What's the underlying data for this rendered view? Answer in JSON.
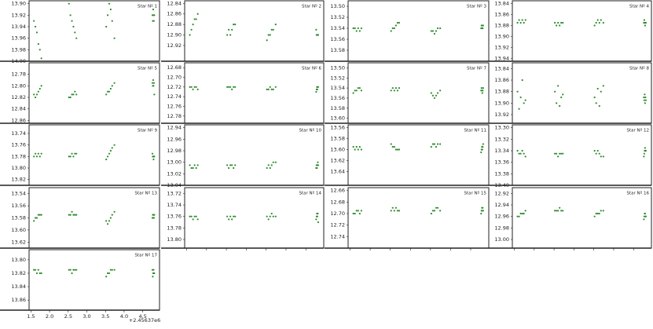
{
  "x_axis": {
    "xlim": [
      1.45,
      4.95
    ],
    "xticks": [
      1.5,
      {
        "value": 2,
        "label": "2.0"
      },
      2.5,
      {
        "value": 3,
        "label": "3.0"
      },
      3.5,
      {
        "value": 4,
        "label": "4.0"
      },
      4.5
    ],
    "offset_label": "+2.45637e6"
  },
  "chart_data": [
    {
      "type": "scatter",
      "title": "Star Nº 1",
      "color": "#2e8b2e",
      "ylim": [
        13.895,
        14.0
      ],
      "yticks": [
        {
          "value": 13.9,
          "label": "13.90"
        },
        13.92,
        13.94,
        13.96,
        13.98,
        {
          "value": 14.0,
          "label": "14.00"
        }
      ],
      "x": [
        1.58,
        1.62,
        1.66,
        1.7,
        1.74,
        1.78,
        2.52,
        2.56,
        2.6,
        2.64,
        2.68,
        2.72,
        3.52,
        3.56,
        3.6,
        3.64,
        3.68,
        3.74,
        4.76,
        4.77,
        4.78,
        4.79,
        4.8,
        4.81
      ],
      "y": [
        13.93,
        13.94,
        13.95,
        13.97,
        13.98,
        13.995,
        13.9,
        13.92,
        13.93,
        13.94,
        13.95,
        13.96,
        13.94,
        13.92,
        13.9,
        13.91,
        13.93,
        13.96,
        13.92,
        13.93,
        13.91,
        13.92,
        13.93,
        13.92
      ]
    },
    {
      "type": "scatter",
      "title": "Star Nº 2",
      "color": "#2e8b2e",
      "ylim": [
        12.835,
        12.95
      ],
      "yticks": [
        12.84,
        12.86,
        12.88,
        {
          "value": 12.9,
          "label": "12.90"
        },
        12.92
      ],
      "x": [
        1.58,
        1.62,
        1.66,
        1.7,
        1.74,
        1.78,
        2.52,
        2.56,
        2.6,
        2.64,
        2.68,
        2.72,
        3.52,
        3.56,
        3.6,
        3.64,
        3.68,
        3.74,
        4.76,
        4.77,
        4.78,
        4.79,
        4.8,
        4.81
      ],
      "y": [
        12.9,
        12.89,
        12.88,
        12.87,
        12.87,
        12.86,
        12.9,
        12.89,
        12.9,
        12.89,
        12.88,
        12.88,
        12.91,
        12.9,
        12.9,
        12.89,
        12.89,
        12.88,
        12.89,
        12.9,
        12.9,
        12.9,
        12.9,
        12.9
      ]
    },
    {
      "type": "scatter",
      "title": "Star Nº 3",
      "color": "#2e8b2e",
      "ylim": [
        13.49,
        13.6
      ],
      "yticks": [
        {
          "value": 13.5,
          "label": "13.50"
        },
        13.52,
        13.54,
        13.56,
        13.58
      ],
      "x": [
        1.58,
        1.62,
        1.66,
        1.7,
        1.74,
        1.78,
        2.52,
        2.56,
        2.6,
        2.64,
        2.68,
        2.72,
        3.52,
        3.56,
        3.6,
        3.64,
        3.68,
        3.74,
        4.76,
        4.77,
        4.78,
        4.79,
        4.8,
        4.81
      ],
      "y": [
        13.54,
        13.54,
        13.545,
        13.54,
        13.545,
        13.54,
        13.545,
        13.54,
        13.54,
        13.535,
        13.53,
        13.53,
        13.545,
        13.545,
        13.55,
        13.545,
        13.54,
        13.54,
        13.54,
        13.535,
        13.54,
        13.535,
        13.54,
        13.535
      ]
    },
    {
      "type": "scatter",
      "title": "Star Nº 4",
      "color": "#2e8b2e",
      "ylim": [
        13.835,
        13.945
      ],
      "yticks": [
        13.84,
        13.86,
        13.88,
        {
          "value": 13.9,
          "label": "13.90"
        },
        13.92,
        13.94
      ],
      "x": [
        1.58,
        1.62,
        1.66,
        1.7,
        1.74,
        1.78,
        2.52,
        2.56,
        2.6,
        2.64,
        2.68,
        2.72,
        3.52,
        3.56,
        3.6,
        3.64,
        3.68,
        3.74,
        4.76,
        4.77,
        4.78,
        4.79,
        4.8,
        4.81
      ],
      "y": [
        13.875,
        13.87,
        13.875,
        13.87,
        13.875,
        13.87,
        13.875,
        13.88,
        13.875,
        13.88,
        13.875,
        13.875,
        13.88,
        13.875,
        13.87,
        13.875,
        13.87,
        13.875,
        13.875,
        13.87,
        13.875,
        13.88,
        13.875,
        13.875
      ]
    },
    {
      "type": "scatter",
      "title": "Star Nº 5",
      "color": "#2e8b2e",
      "ylim": [
        12.76,
        12.865
      ],
      "yticks": [
        12.78,
        {
          "value": 12.8,
          "label": "12.80"
        },
        12.82,
        12.84,
        12.86
      ],
      "x": [
        1.58,
        1.62,
        1.66,
        1.7,
        1.74,
        1.78,
        2.52,
        2.56,
        2.6,
        2.64,
        2.68,
        2.72,
        3.52,
        3.56,
        3.6,
        3.64,
        3.68,
        3.74,
        4.76,
        4.77,
        4.78,
        4.79,
        4.8,
        4.81
      ],
      "y": [
        12.815,
        12.82,
        12.815,
        12.81,
        12.805,
        12.8,
        12.82,
        12.82,
        12.815,
        12.815,
        12.81,
        12.815,
        12.815,
        12.81,
        12.81,
        12.805,
        12.8,
        12.795,
        12.795,
        12.8,
        12.79,
        12.8,
        12.795,
        12.815
      ]
    },
    {
      "type": "scatter",
      "title": "Star Nº 6",
      "color": "#2e8b2e",
      "ylim": [
        12.67,
        12.795
      ],
      "yticks": [
        12.68,
        {
          "value": 12.7,
          "label": "12.70"
        },
        12.72,
        12.74,
        12.76,
        12.78
      ],
      "x": [
        1.58,
        1.62,
        1.66,
        1.7,
        1.74,
        1.78,
        2.52,
        2.56,
        2.6,
        2.64,
        2.68,
        2.72,
        3.52,
        3.56,
        3.6,
        3.64,
        3.68,
        3.74,
        4.76,
        4.77,
        4.78,
        4.79,
        4.8,
        4.81
      ],
      "y": [
        12.72,
        12.72,
        12.725,
        12.72,
        12.72,
        12.725,
        12.72,
        12.72,
        12.72,
        12.725,
        12.72,
        12.72,
        12.725,
        12.725,
        12.72,
        12.725,
        12.725,
        12.72,
        12.73,
        12.725,
        12.72,
        12.725,
        12.72,
        12.72
      ]
    },
    {
      "type": "scatter",
      "title": "Star Nº 7",
      "color": "#2e8b2e",
      "ylim": [
        13.49,
        13.61
      ],
      "yticks": [
        {
          "value": 13.5,
          "label": "13.50"
        },
        13.52,
        13.54,
        13.56,
        13.58,
        {
          "value": 13.6,
          "label": "13.60"
        }
      ],
      "x": [
        1.58,
        1.62,
        1.66,
        1.7,
        1.74,
        1.78,
        2.52,
        2.56,
        2.6,
        2.64,
        2.68,
        2.72,
        3.52,
        3.56,
        3.6,
        3.64,
        3.68,
        3.74,
        4.76,
        4.77,
        4.78,
        4.79,
        4.8,
        4.81
      ],
      "y": [
        13.55,
        13.545,
        13.545,
        13.54,
        13.54,
        13.545,
        13.545,
        13.54,
        13.545,
        13.54,
        13.545,
        13.54,
        13.55,
        13.555,
        13.56,
        13.555,
        13.55,
        13.545,
        13.545,
        13.54,
        13.545,
        13.55,
        13.545,
        13.54
      ]
    },
    {
      "type": "scatter",
      "title": "Star Nº 8",
      "color": "#2e8b2e",
      "ylim": [
        13.83,
        13.935
      ],
      "yticks": [
        13.84,
        13.86,
        13.88,
        {
          "value": 13.9,
          "label": "13.90"
        },
        13.92
      ],
      "x": [
        1.58,
        1.62,
        1.66,
        1.7,
        1.74,
        1.78,
        2.52,
        2.56,
        2.6,
        2.64,
        2.68,
        2.72,
        3.52,
        3.56,
        3.6,
        3.64,
        3.68,
        3.74,
        4.76,
        4.77,
        4.78,
        4.79,
        4.8,
        4.81
      ],
      "y": [
        13.88,
        13.91,
        13.89,
        13.86,
        13.9,
        13.895,
        13.88,
        13.9,
        13.87,
        13.905,
        13.89,
        13.885,
        13.89,
        13.9,
        13.875,
        13.905,
        13.88,
        13.87,
        13.89,
        13.895,
        13.885,
        13.9,
        13.89,
        13.895
      ]
    },
    {
      "type": "scatter",
      "title": "Star Nº 9",
      "color": "#2e8b2e",
      "ylim": [
        13.725,
        13.83
      ],
      "yticks": [
        13.74,
        13.76,
        13.78,
        {
          "value": 13.8,
          "label": "13.80"
        },
        13.82
      ],
      "x": [
        1.58,
        1.62,
        1.66,
        1.7,
        1.74,
        1.78,
        2.52,
        2.56,
        2.6,
        2.64,
        2.68,
        2.72,
        3.52,
        3.56,
        3.6,
        3.64,
        3.68,
        3.74,
        4.76,
        4.77,
        4.78,
        4.79,
        4.8,
        4.81
      ],
      "y": [
        13.78,
        13.775,
        13.78,
        13.775,
        13.78,
        13.775,
        13.78,
        13.78,
        13.775,
        13.78,
        13.775,
        13.775,
        13.785,
        13.78,
        13.775,
        13.77,
        13.765,
        13.76,
        13.775,
        13.78,
        13.78,
        13.785,
        13.78,
        13.78
      ]
    },
    {
      "type": "scatter",
      "title": "Star Nº 10",
      "color": "#2e8b2e",
      "ylim": [
        12.935,
        13.04
      ],
      "yticks": [
        12.94,
        12.96,
        12.98,
        {
          "value": 13.0,
          "label": "13.00"
        },
        13.02,
        13.04
      ],
      "x": [
        1.58,
        1.62,
        1.66,
        1.7,
        1.74,
        1.78,
        2.52,
        2.56,
        2.6,
        2.64,
        2.68,
        2.72,
        3.52,
        3.56,
        3.6,
        3.64,
        3.68,
        3.74,
        4.76,
        4.77,
        4.78,
        4.79,
        4.8,
        4.81
      ],
      "y": [
        13.005,
        13.01,
        13.01,
        13.005,
        13.01,
        13.005,
        13.005,
        13.01,
        13.005,
        13.005,
        13.01,
        13.005,
        13.01,
        13.005,
        13.01,
        13.005,
        13.0,
        13.0,
        13.01,
        13.005,
        13.01,
        13.005,
        13.0,
        13.005
      ]
    },
    {
      "type": "scatter",
      "title": "Star Nº 11",
      "color": "#2e8b2e",
      "ylim": [
        13.555,
        13.665
      ],
      "yticks": [
        13.56,
        13.58,
        {
          "value": 13.6,
          "label": "13.60"
        },
        13.62,
        13.64
      ],
      "x": [
        1.58,
        1.62,
        1.66,
        1.7,
        1.74,
        1.78,
        2.52,
        2.56,
        2.6,
        2.64,
        2.68,
        2.72,
        3.52,
        3.56,
        3.6,
        3.64,
        3.68,
        3.74,
        4.76,
        4.77,
        4.78,
        4.79,
        4.8,
        4.81
      ],
      "y": [
        13.595,
        13.6,
        13.595,
        13.6,
        13.595,
        13.6,
        13.59,
        13.595,
        13.595,
        13.6,
        13.6,
        13.6,
        13.595,
        13.59,
        13.59,
        13.595,
        13.59,
        13.59,
        13.605,
        13.6,
        13.595,
        13.6,
        13.595,
        13.59
      ]
    },
    {
      "type": "scatter",
      "title": "Star Nº 12",
      "color": "#2e8b2e",
      "ylim": [
        13.295,
        13.4
      ],
      "yticks": [
        {
          "value": 13.3,
          "label": "13.30"
        },
        13.32,
        13.34,
        13.36,
        13.38,
        {
          "value": 13.4,
          "label": "13.40"
        }
      ],
      "x": [
        1.58,
        1.62,
        1.66,
        1.7,
        1.74,
        1.78,
        2.52,
        2.56,
        2.6,
        2.64,
        2.68,
        2.72,
        3.52,
        3.56,
        3.6,
        3.64,
        3.68,
        3.74,
        4.76,
        4.77,
        4.78,
        4.79,
        4.8,
        4.81
      ],
      "y": [
        13.34,
        13.345,
        13.345,
        13.34,
        13.345,
        13.35,
        13.345,
        13.345,
        13.35,
        13.345,
        13.345,
        13.345,
        13.34,
        13.345,
        13.34,
        13.345,
        13.35,
        13.35,
        13.35,
        13.345,
        13.34,
        13.335,
        13.34,
        13.34
      ]
    },
    {
      "type": "scatter",
      "title": "Star Nº 13",
      "color": "#2e8b2e",
      "ylim": [
        13.53,
        13.63
      ],
      "yticks": [
        13.54,
        13.56,
        13.58,
        {
          "value": 13.6,
          "label": "13.60"
        },
        13.62
      ],
      "x": [
        1.58,
        1.62,
        1.66,
        1.7,
        1.74,
        1.78,
        2.52,
        2.56,
        2.6,
        2.64,
        2.68,
        2.72,
        3.52,
        3.56,
        3.6,
        3.64,
        3.68,
        3.74,
        4.76,
        4.77,
        4.78,
        4.79,
        4.8,
        4.81
      ],
      "y": [
        13.585,
        13.58,
        13.58,
        13.575,
        13.575,
        13.575,
        13.575,
        13.575,
        13.57,
        13.575,
        13.575,
        13.575,
        13.585,
        13.59,
        13.585,
        13.58,
        13.575,
        13.57,
        13.58,
        13.575,
        13.58,
        13.575,
        13.58,
        13.575
      ]
    },
    {
      "type": "scatter",
      "title": "Star Nº 14",
      "color": "#2e8b2e",
      "ylim": [
        13.71,
        13.815
      ],
      "yticks": [
        13.72,
        13.74,
        13.76,
        13.78,
        {
          "value": 13.8,
          "label": "13.80"
        }
      ],
      "x": [
        1.58,
        1.62,
        1.66,
        1.7,
        1.74,
        1.78,
        2.52,
        2.56,
        2.6,
        2.64,
        2.68,
        2.72,
        3.52,
        3.56,
        3.6,
        3.64,
        3.68,
        3.74,
        4.76,
        4.77,
        4.78,
        4.79,
        4.8,
        4.81
      ],
      "y": [
        13.76,
        13.76,
        13.765,
        13.76,
        13.76,
        13.765,
        13.76,
        13.765,
        13.76,
        13.765,
        13.76,
        13.76,
        13.76,
        13.765,
        13.76,
        13.755,
        13.76,
        13.76,
        13.765,
        13.76,
        13.755,
        13.76,
        13.755,
        13.77
      ]
    },
    {
      "type": "scatter",
      "title": "Star Nº 15",
      "color": "#2e8b2e",
      "ylim": [
        12.655,
        12.76
      ],
      "yticks": [
        12.66,
        12.68,
        {
          "value": 12.7,
          "label": "12.70"
        },
        12.72,
        12.74
      ],
      "x": [
        1.58,
        1.62,
        1.66,
        1.7,
        1.74,
        1.78,
        2.52,
        2.56,
        2.6,
        2.64,
        2.68,
        2.72,
        3.52,
        3.56,
        3.6,
        3.64,
        3.68,
        3.74,
        4.76,
        4.77,
        4.78,
        4.79,
        4.8,
        4.81
      ],
      "y": [
        12.7,
        12.7,
        12.695,
        12.695,
        12.7,
        12.695,
        12.695,
        12.69,
        12.695,
        12.69,
        12.695,
        12.695,
        12.7,
        12.695,
        12.695,
        12.69,
        12.69,
        12.695,
        12.7,
        12.695,
        12.69,
        12.695,
        12.69,
        12.695
      ]
    },
    {
      "type": "scatter",
      "title": "Star Nº 16",
      "color": "#2e8b2e",
      "ylim": [
        12.91,
        13.015
      ],
      "yticks": [
        12.92,
        12.94,
        12.96,
        12.98,
        {
          "value": 13.0,
          "label": "13.00"
        }
      ],
      "x": [
        1.58,
        1.62,
        1.66,
        1.7,
        1.74,
        1.78,
        2.52,
        2.56,
        2.6,
        2.64,
        2.68,
        2.72,
        3.52,
        3.56,
        3.6,
        3.64,
        3.68,
        3.74,
        4.76,
        4.77,
        4.78,
        4.79,
        4.8,
        4.81
      ],
      "y": [
        12.96,
        12.96,
        12.955,
        12.955,
        12.955,
        12.95,
        12.95,
        12.95,
        12.95,
        12.945,
        12.95,
        12.95,
        12.96,
        12.955,
        12.955,
        12.955,
        12.95,
        12.95,
        12.965,
        12.96,
        12.955,
        12.955,
        12.96,
        12.96
      ]
    },
    {
      "type": "scatter",
      "title": "Star Nº 17",
      "color": "#2e8b2e",
      "ylim": [
        13.785,
        13.875
      ],
      "yticks": [
        {
          "value": 13.8,
          "label": "13.80"
        },
        13.82,
        13.84,
        13.86
      ],
      "x": [
        1.58,
        1.62,
        1.66,
        1.7,
        1.74,
        1.78,
        2.52,
        2.56,
        2.6,
        2.64,
        2.68,
        2.72,
        3.52,
        3.56,
        3.6,
        3.64,
        3.68,
        3.74,
        4.76,
        4.77,
        4.78,
        4.79,
        4.8,
        4.81
      ],
      "y": [
        13.815,
        13.815,
        13.82,
        13.815,
        13.82,
        13.82,
        13.815,
        13.815,
        13.82,
        13.815,
        13.815,
        13.815,
        13.825,
        13.82,
        13.82,
        13.815,
        13.815,
        13.815,
        13.815,
        13.825,
        13.82,
        13.815,
        13.82,
        13.82
      ]
    }
  ]
}
